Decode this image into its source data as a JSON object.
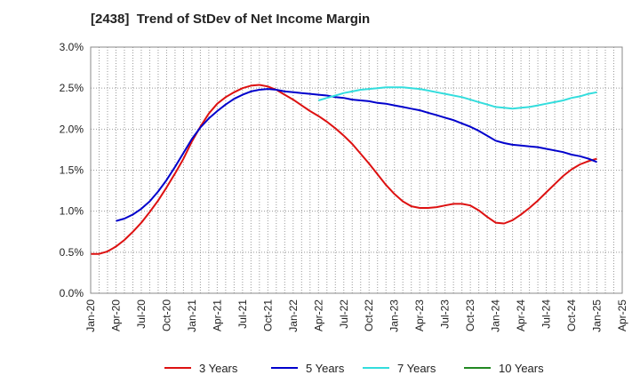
{
  "chart_data": {
    "type": "line",
    "title": "[2438]  Trend of StDev of Net Income Margin",
    "xlabel": "",
    "ylabel": "",
    "x_ticks": [
      "Jan-20",
      "Apr-20",
      "Jul-20",
      "Oct-20",
      "Jan-21",
      "Apr-21",
      "Jul-21",
      "Oct-21",
      "Jan-22",
      "Apr-22",
      "Jul-22",
      "Oct-22",
      "Jan-23",
      "Apr-23",
      "Jul-23",
      "Oct-23",
      "Jan-24",
      "Apr-24",
      "Jul-24",
      "Oct-24",
      "Jan-25",
      "Apr-25"
    ],
    "y_ticks": [
      "0.0%",
      "0.5%",
      "1.0%",
      "1.5%",
      "2.0%",
      "2.5%",
      "3.0%"
    ],
    "ylim": [
      0,
      3.0
    ],
    "grid": true,
    "legend_position": "bottom",
    "series": [
      {
        "name": "3 Years",
        "color": "#dd1111",
        "x": [
          "2020-01",
          "2020-02",
          "2020-03",
          "2020-04",
          "2020-05",
          "2020-06",
          "2020-07",
          "2020-08",
          "2020-09",
          "2020-10",
          "2020-11",
          "2020-12",
          "2021-01",
          "2021-02",
          "2021-03",
          "2021-04",
          "2021-05",
          "2021-06",
          "2021-07",
          "2021-08",
          "2021-09",
          "2021-10",
          "2021-11",
          "2021-12",
          "2022-01",
          "2022-02",
          "2022-03",
          "2022-04",
          "2022-05",
          "2022-06",
          "2022-07",
          "2022-08",
          "2022-09",
          "2022-10",
          "2022-11",
          "2022-12",
          "2023-01",
          "2023-02",
          "2023-03",
          "2023-04",
          "2023-05",
          "2023-06",
          "2023-07",
          "2023-08",
          "2023-09",
          "2023-10",
          "2023-11",
          "2023-12",
          "2024-01",
          "2024-02",
          "2024-03",
          "2024-04",
          "2024-05",
          "2024-06",
          "2024-07",
          "2024-08",
          "2024-09",
          "2024-10",
          "2024-11",
          "2024-12",
          "2025-01"
        ],
        "values": [
          0.48,
          0.48,
          0.51,
          0.57,
          0.65,
          0.75,
          0.86,
          0.99,
          1.13,
          1.29,
          1.46,
          1.64,
          1.85,
          2.03,
          2.19,
          2.31,
          2.39,
          2.45,
          2.5,
          2.53,
          2.54,
          2.52,
          2.48,
          2.42,
          2.36,
          2.29,
          2.22,
          2.16,
          2.09,
          2.01,
          1.92,
          1.82,
          1.7,
          1.58,
          1.45,
          1.32,
          1.21,
          1.12,
          1.06,
          1.04,
          1.04,
          1.05,
          1.07,
          1.09,
          1.09,
          1.07,
          1.01,
          0.93,
          0.86,
          0.85,
          0.89,
          0.96,
          1.04,
          1.13,
          1.23,
          1.33,
          1.43,
          1.51,
          1.57,
          1.61,
          1.64
        ]
      },
      {
        "name": "5 Years",
        "color": "#0000cc",
        "x": [
          "2020-04",
          "2020-05",
          "2020-06",
          "2020-07",
          "2020-08",
          "2020-09",
          "2020-10",
          "2020-11",
          "2020-12",
          "2021-01",
          "2021-02",
          "2021-03",
          "2021-04",
          "2021-05",
          "2021-06",
          "2021-07",
          "2021-08",
          "2021-09",
          "2021-10",
          "2021-11",
          "2021-12",
          "2022-01",
          "2022-02",
          "2022-03",
          "2022-04",
          "2022-05",
          "2022-06",
          "2022-07",
          "2022-08",
          "2022-09",
          "2022-10",
          "2022-11",
          "2022-12",
          "2023-01",
          "2023-02",
          "2023-03",
          "2023-04",
          "2023-05",
          "2023-06",
          "2023-07",
          "2023-08",
          "2023-09",
          "2023-10",
          "2023-11",
          "2023-12",
          "2024-01",
          "2024-02",
          "2024-03",
          "2024-04",
          "2024-05",
          "2024-06",
          "2024-07",
          "2024-08",
          "2024-09",
          "2024-10",
          "2024-11",
          "2024-12",
          "2025-01"
        ],
        "values": [
          0.88,
          0.91,
          0.96,
          1.03,
          1.12,
          1.24,
          1.38,
          1.54,
          1.71,
          1.88,
          2.02,
          2.13,
          2.22,
          2.3,
          2.37,
          2.42,
          2.46,
          2.48,
          2.49,
          2.48,
          2.46,
          2.45,
          2.44,
          2.43,
          2.42,
          2.41,
          2.39,
          2.38,
          2.36,
          2.35,
          2.34,
          2.32,
          2.31,
          2.29,
          2.27,
          2.25,
          2.23,
          2.2,
          2.17,
          2.14,
          2.11,
          2.07,
          2.03,
          1.98,
          1.92,
          1.86,
          1.83,
          1.81,
          1.8,
          1.79,
          1.78,
          1.76,
          1.74,
          1.72,
          1.69,
          1.67,
          1.64,
          1.6
        ]
      },
      {
        "name": "7 Years",
        "color": "#33dddd",
        "x": [
          "2022-04",
          "2022-05",
          "2022-06",
          "2022-07",
          "2022-08",
          "2022-09",
          "2022-10",
          "2022-11",
          "2022-12",
          "2023-01",
          "2023-02",
          "2023-03",
          "2023-04",
          "2023-05",
          "2023-06",
          "2023-07",
          "2023-08",
          "2023-09",
          "2023-10",
          "2023-11",
          "2023-12",
          "2024-01",
          "2024-02",
          "2024-03",
          "2024-04",
          "2024-05",
          "2024-06",
          "2024-07",
          "2024-08",
          "2024-09",
          "2024-10",
          "2024-11",
          "2024-12",
          "2025-01"
        ],
        "values": [
          2.35,
          2.38,
          2.41,
          2.44,
          2.46,
          2.48,
          2.49,
          2.5,
          2.51,
          2.51,
          2.51,
          2.5,
          2.49,
          2.47,
          2.45,
          2.43,
          2.41,
          2.39,
          2.36,
          2.33,
          2.3,
          2.27,
          2.26,
          2.25,
          2.26,
          2.27,
          2.29,
          2.31,
          2.33,
          2.35,
          2.38,
          2.4,
          2.43,
          2.45
        ]
      },
      {
        "name": "10 Years",
        "color": "#228822",
        "x": [],
        "values": []
      }
    ]
  }
}
